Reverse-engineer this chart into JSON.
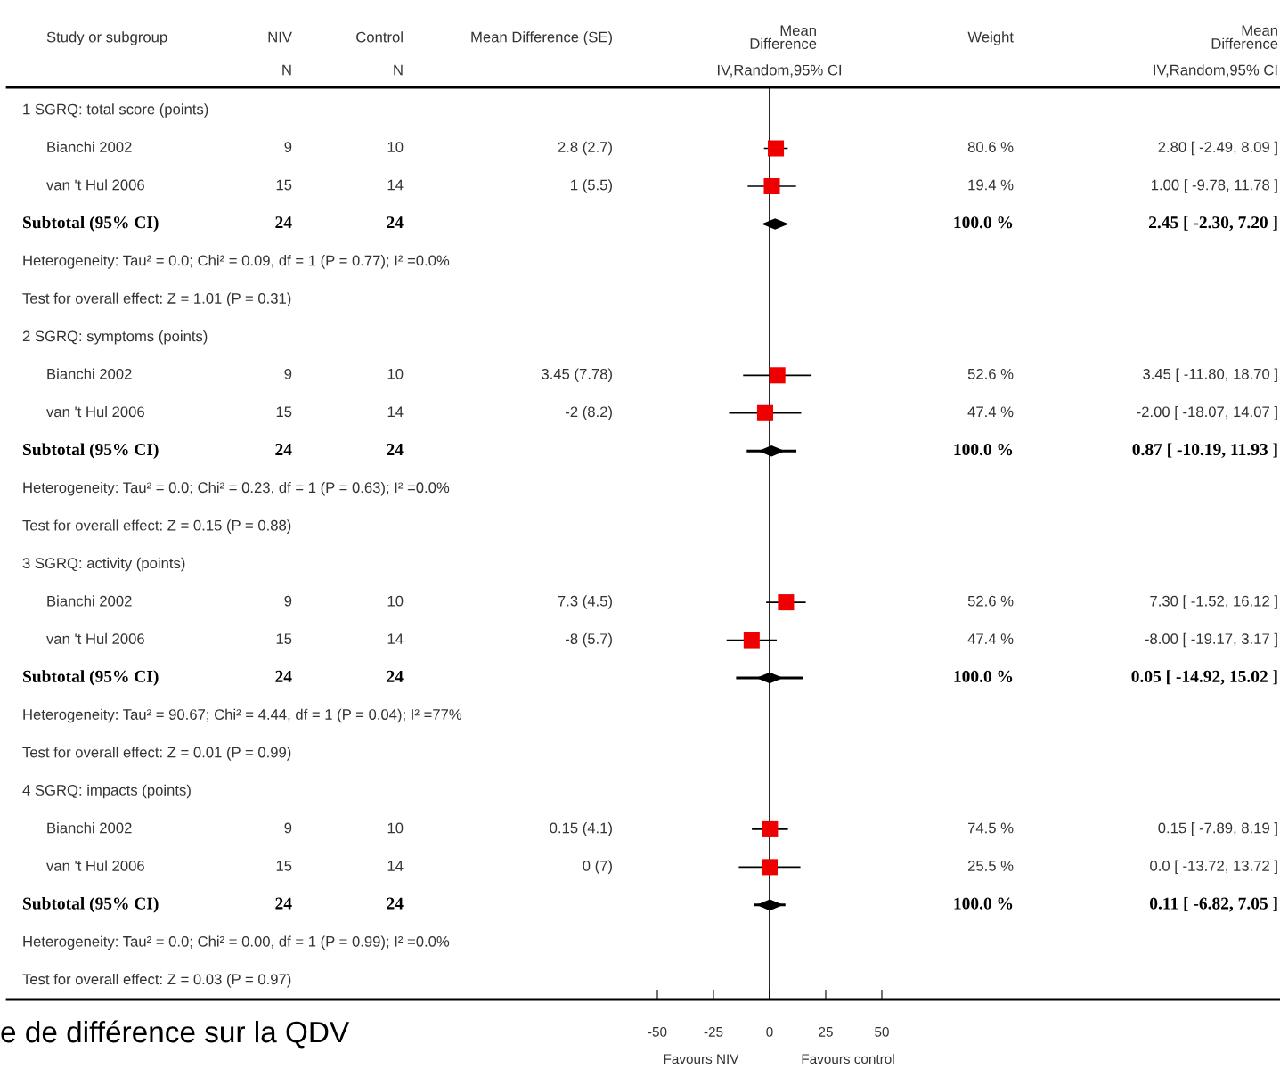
{
  "chart_data": [
    {
      "type": "other",
      "title": "Study or subgroup",
      "annotations": [
        "1 SGRQ: total score (points)",
        "Bianchi 2002",
        "van 't Hul 2006",
        "Subtotal (95% CI)",
        "Heterogeneity: Tau² = 0.0; Chi² = 0.09, df = 1 (P = 0.77); I² =0.0%",
        "Test for overall effect: Z = 1.01 (P = 0.31)",
        "2 SGRQ: symptoms (points)",
        "Bianchi 2002",
        "van 't Hul 2006",
        "Subtotal (95% CI)",
        "Heterogeneity: Tau² = 0.0; Chi² = 0.23, df = 1 (P = 0.63); I² =0.0%",
        "Test for overall effect: Z = 0.15 (P = 0.88)",
        "3 SGRQ: activity (points)",
        "Bianchi 2002",
        "van 't Hul 2006",
        "Subtotal (95% CI)",
        "Heterogeneity: Tau² = 90.67; Chi² = 4.44, df = 1 (P = 0.04); I² =77%",
        "Test for overall effect: Z = 0.01 (P = 0.99)",
        "4 SGRQ: impacts (points)",
        "Bianchi 2002",
        "van 't Hul 2006",
        "Subtotal (95% CI)",
        "Heterogeneity: Tau² = 0.0; Chi² = 0.00, df = 1 (P = 0.99); I² =0.0%",
        "Test for overall effect: Z = 0.03 (P = 0.97)"
      ]
    },
    {
      "type": "other",
      "title": "NIV",
      "subtitle": "N",
      "annotations": [
        null,
        "9",
        "15",
        "24",
        null,
        null,
        null,
        "9",
        "15",
        "24",
        null,
        null,
        null,
        "9",
        "15",
        "24",
        null,
        null,
        null,
        "9",
        "15",
        "24",
        null,
        null
      ]
    },
    {
      "type": "other",
      "title": "Control",
      "subtitle": "N",
      "annotations": [
        null,
        "10",
        "14",
        "24",
        null,
        null,
        null,
        "10",
        "14",
        "24",
        null,
        null,
        null,
        "10",
        "14",
        "24",
        null,
        null,
        null,
        "10",
        "14",
        "24",
        null,
        null
      ]
    },
    {
      "type": "other",
      "title": "Mean Difference (SE)",
      "annotations": [
        null,
        "2.8 (2.7)",
        "1 (5.5)",
        null,
        null,
        null,
        null,
        "3.45 (7.78)",
        "-2 (8.2)",
        null,
        null,
        null,
        null,
        "7.3 (4.5)",
        "-8 (5.7)",
        null,
        null,
        null,
        null,
        "0.15 (4.1)",
        "0 (7)",
        null,
        null,
        null
      ]
    },
    {
      "type": "scatter",
      "orientation": "horizontal",
      "title": "Mean\nDifference",
      "subtitle": "IV,Random,95% CI",
      "categories": [
        null,
        null,
        null,
        null,
        null,
        null,
        null,
        null,
        null,
        null,
        null,
        null,
        null,
        null,
        null,
        null,
        null,
        null,
        null,
        null,
        null,
        null,
        null,
        null
      ],
      "xlim": [
        -339.7,
        227.4
      ],
      "xticks": [
        -50,
        -25,
        0,
        25,
        50
      ],
      "grid": false,
      "legend": false,
      "annotations": [
        "Favours NIV",
        "Favours control"
      ],
      "ref_lines": [
        {
          "axis": "x",
          "value": 0,
          "color": "#000000"
        }
      ],
      "series": [
        {
          "color": "#ee0000",
          "marker": "square",
          "values": [
            null,
            2.8,
            1,
            null,
            null,
            null,
            null,
            3.45,
            -2,
            null,
            null,
            null,
            null,
            7.3,
            -8,
            null,
            null,
            null,
            null,
            0.15,
            0,
            null,
            null,
            null
          ],
          "errors": [
            null,
            [
              -2.49,
              8.09
            ],
            [
              -9.78,
              11.78
            ],
            null,
            null,
            null,
            null,
            [
              -11.8,
              18.7
            ],
            [
              -18.07,
              14.07
            ],
            null,
            null,
            null,
            null,
            [
              -1.52,
              16.12
            ],
            [
              -19.17,
              3.17
            ],
            null,
            null,
            null,
            null,
            [
              -7.89,
              8.19
            ],
            [
              -13.72,
              13.72
            ],
            null,
            null,
            null
          ]
        },
        {
          "color": "#000000",
          "marker": "diamond",
          "values": [
            null,
            null,
            null,
            2.45,
            null,
            null,
            null,
            null,
            null,
            0.87,
            null,
            null,
            null,
            null,
            null,
            0.05,
            null,
            null,
            null,
            null,
            null,
            0.11,
            null,
            null
          ],
          "errors": [
            null,
            null,
            null,
            [
              -2.3,
              7.2
            ],
            null,
            null,
            null,
            null,
            null,
            [
              -10.19,
              11.93
            ],
            null,
            null,
            null,
            null,
            null,
            [
              -14.92,
              15.02
            ],
            null,
            null,
            null,
            null,
            null,
            [
              -6.82,
              7.05
            ],
            null,
            null
          ]
        }
      ]
    },
    {
      "type": "other",
      "title": "Weight",
      "annotations": [
        null,
        "80.6 %",
        "19.4 %",
        "100.0 %",
        null,
        null,
        null,
        "52.6 %",
        "47.4 %",
        "100.0 %",
        null,
        null,
        null,
        "52.6 %",
        "47.4 %",
        "100.0 %",
        null,
        null,
        null,
        "74.5 %",
        "25.5 %",
        "100.0 %",
        null,
        null
      ]
    },
    {
      "type": "other",
      "title": "Mean\nDifference",
      "subtitle": "IV,Random,95% CI",
      "annotations": [
        null,
        "2.80 [ -2.49, 8.09 ]",
        "1.00 [ -9.78, 11.78 ]",
        "2.45 [ -2.30, 7.20 ]",
        null,
        null,
        null,
        "3.45 [ -11.80, 18.70 ]",
        "-2.00 [ -18.07, 14.07 ]",
        "0.87 [ -10.19, 11.93 ]",
        null,
        null,
        null,
        "7.30 [ -1.52, 16.12 ]",
        "-8.00 [ -19.17, 3.17 ]",
        "0.05 [ -14.92, 15.02 ]",
        null,
        null,
        null,
        "0.15 [ -7.89, 8.19 ]",
        "0.0 [ -13.72, 13.72 ]",
        "0.11 [ -6.82, 7.05 ]",
        null,
        null
      ]
    },
    {
      "type": "other",
      "title": "e de différence sur la QDV"
    }
  ]
}
